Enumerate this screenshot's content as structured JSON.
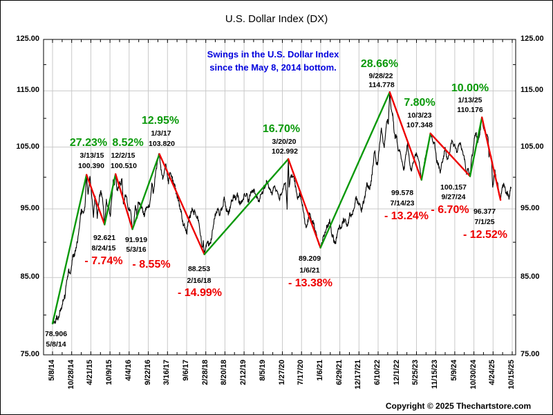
{
  "title": "U.S. Dollar Index (DX)",
  "annotation": {
    "line1": "Swings in the U.S. Dollar Index",
    "line2": "since the May 8, 2014 bottom."
  },
  "copyright": "Copyright © 2025 Thechartstore.com",
  "colors": {
    "up": "#0a990a",
    "down": "#ee0000",
    "annotation": "#0000dd",
    "price": "#000000",
    "grid": "#c9c9c9",
    "frame": "#000000"
  },
  "chart_data": {
    "type": "line",
    "title": "U.S. Dollar Index (DX)",
    "y_axis": {
      "scale": "log",
      "range": [
        75,
        125
      ],
      "tick_values": [
        125,
        115,
        105,
        95,
        85,
        75
      ],
      "tick_labels": [
        "125.00",
        "115.00",
        "105.00",
        "95.00",
        "85.00",
        "75.00"
      ],
      "grid_values": [
        115,
        105,
        95,
        85
      ]
    },
    "x_axis": {
      "tick_labels": [
        "5/8/14",
        "10/28/14",
        "4/21/15",
        "10/9/15",
        "4/4/16",
        "9/22/16",
        "3/16/17",
        "9/6/17",
        "2/28/18",
        "8/20/18",
        "2/12/19",
        "8/5/19",
        "1/27/20",
        "7/17/20",
        "1/6/21",
        "6/29/21",
        "12/17/21",
        "6/10/22",
        "12/1/22",
        "5/25/23",
        "11/15/23",
        "5/9/24",
        "10/30/24",
        "4/24/25",
        "10/15/25"
      ],
      "span_days": 4178
    },
    "swing_points": [
      {
        "date": "5/8/14",
        "value": 78.906,
        "day": 0
      },
      {
        "date": "3/13/15",
        "value": 100.39,
        "day": 309,
        "pct": "27.23%",
        "dir": "up"
      },
      {
        "date": "8/24/15",
        "value": 92.621,
        "day": 473,
        "pct": "- 7.74%",
        "dir": "down"
      },
      {
        "date": "12/2/15",
        "value": 100.51,
        "day": 573,
        "pct": "8.52%",
        "dir": "up"
      },
      {
        "date": "5/3/16",
        "value": 91.919,
        "day": 726,
        "pct": "- 8.55%",
        "dir": "down"
      },
      {
        "date": "1/3/17",
        "value": 103.82,
        "day": 971,
        "pct": "12.95%",
        "dir": "up"
      },
      {
        "date": "2/16/18",
        "value": 88.253,
        "day": 1380,
        "pct": "- 14.99%",
        "dir": "down"
      },
      {
        "date": "3/20/20",
        "value": 102.992,
        "day": 2143,
        "pct": "16.70%",
        "dir": "up"
      },
      {
        "date": "1/6/21",
        "value": 89.209,
        "day": 2435,
        "pct": "- 13.38%",
        "dir": "down"
      },
      {
        "date": "9/28/22",
        "value": 114.778,
        "day": 3065,
        "pct": "28.66%",
        "dir": "up"
      },
      {
        "date": "7/14/23",
        "value": 99.578,
        "day": 3354,
        "pct": "- 13.24%",
        "dir": "down"
      },
      {
        "date": "10/3/23",
        "value": 107.348,
        "day": 3435,
        "pct": "7.80%",
        "dir": "up"
      },
      {
        "date": "9/27/24",
        "value": 100.157,
        "day": 3795,
        "pct": "- 6.70%",
        "dir": "down"
      },
      {
        "date": "1/13/25",
        "value": 110.176,
        "day": 3903,
        "pct": "10.00%",
        "dir": "up"
      },
      {
        "date": "7/1/25",
        "value": 96.377,
        "day": 4072,
        "pct": "- 12.52%",
        "dir": "down"
      }
    ],
    "price_path": [
      [
        0,
        78.906
      ],
      [
        25,
        79.3
      ],
      [
        54,
        79.8
      ],
      [
        85,
        81.3
      ],
      [
        116,
        82.8
      ],
      [
        148,
        86.2
      ],
      [
        160,
        85.1
      ],
      [
        183,
        87.7
      ],
      [
        214,
        89.0
      ],
      [
        246,
        92.3
      ],
      [
        260,
        94.9
      ],
      [
        280,
        94.3
      ],
      [
        294,
        95.3
      ],
      [
        309,
        100.39
      ],
      [
        322,
        97.2
      ],
      [
        340,
        99.8
      ],
      [
        360,
        96.5
      ],
      [
        372,
        93.3
      ],
      [
        384,
        97.2
      ],
      [
        406,
        93.9
      ],
      [
        425,
        96.5
      ],
      [
        439,
        97.9
      ],
      [
        455,
        96.3
      ],
      [
        473,
        92.621
      ],
      [
        489,
        96.1
      ],
      [
        510,
        95.1
      ],
      [
        525,
        94.0
      ],
      [
        551,
        99.2
      ],
      [
        560,
        98.7
      ],
      [
        573,
        100.51
      ],
      [
        586,
        97.8
      ],
      [
        605,
        98.8
      ],
      [
        631,
        99.5
      ],
      [
        644,
        95.8
      ],
      [
        660,
        96.9
      ],
      [
        672,
        97.1
      ],
      [
        690,
        94.8
      ],
      [
        710,
        94.6
      ],
      [
        726,
        91.919
      ],
      [
        740,
        93.0
      ],
      [
        753,
        95.6
      ],
      [
        770,
        93.6
      ],
      [
        778,
        96.1
      ],
      [
        800,
        95.5
      ],
      [
        834,
        94.2
      ],
      [
        860,
        95.5
      ],
      [
        880,
        95.3
      ],
      [
        902,
        98.8
      ],
      [
        917,
        97.5
      ],
      [
        940,
        101.0
      ],
      [
        958,
        103.3
      ],
      [
        971,
        103.82
      ],
      [
        985,
        101.3
      ],
      [
        1001,
        99.8
      ],
      [
        1029,
        102.1
      ],
      [
        1054,
        99.0
      ],
      [
        1068,
        100.8
      ],
      [
        1099,
        99.2
      ],
      [
        1133,
        97.0
      ],
      [
        1152,
        95.7
      ],
      [
        1180,
        93.3
      ],
      [
        1219,
        91.4
      ],
      [
        1240,
        93.5
      ],
      [
        1268,
        94.9
      ],
      [
        1279,
        94.6
      ],
      [
        1314,
        93.9
      ],
      [
        1340,
        92.0
      ],
      [
        1358,
        89.0
      ],
      [
        1370,
        90.2
      ],
      [
        1380,
        88.253
      ],
      [
        1400,
        89.9
      ],
      [
        1420,
        89.6
      ],
      [
        1440,
        90.0
      ],
      [
        1460,
        92.4
      ],
      [
        1482,
        94.2
      ],
      [
        1498,
        94.9
      ],
      [
        1520,
        94.4
      ],
      [
        1545,
        95.4
      ],
      [
        1560,
        96.6
      ],
      [
        1580,
        95.0
      ],
      [
        1597,
        94.2
      ],
      [
        1620,
        95.7
      ],
      [
        1645,
        97.0
      ],
      [
        1665,
        96.8
      ],
      [
        1681,
        97.1
      ],
      [
        1700,
        96.0
      ],
      [
        1708,
        95.6
      ],
      [
        1730,
        96.5
      ],
      [
        1764,
        97.5
      ],
      [
        1777,
        96.0
      ],
      [
        1795,
        97.3
      ],
      [
        1814,
        98.0
      ],
      [
        1840,
        97.6
      ],
      [
        1874,
        96.2
      ],
      [
        1900,
        97.5
      ],
      [
        1925,
        98.3
      ],
      [
        1944,
        99.2
      ],
      [
        1970,
        98.5
      ],
      [
        1989,
        97.4
      ],
      [
        2020,
        98.3
      ],
      [
        2045,
        97.5
      ],
      [
        2063,
        96.6
      ],
      [
        2090,
        97.9
      ],
      [
        2114,
        99.5
      ],
      [
        2125,
        97.4
      ],
      [
        2132,
        95.0
      ],
      [
        2143,
        102.992
      ],
      [
        2150,
        98.5
      ],
      [
        2165,
        100.0
      ],
      [
        2178,
        100.2
      ],
      [
        2200,
        99.6
      ],
      [
        2225,
        96.4
      ],
      [
        2245,
        97.3
      ],
      [
        2270,
        95.9
      ],
      [
        2290,
        93.4
      ],
      [
        2308,
        92.0
      ],
      [
        2332,
        94.3
      ],
      [
        2350,
        93.3
      ],
      [
        2377,
        92.6
      ],
      [
        2400,
        91.0
      ],
      [
        2420,
        90.0
      ],
      [
        2435,
        89.209
      ],
      [
        2455,
        90.3
      ],
      [
        2480,
        91.8
      ],
      [
        2500,
        92.4
      ],
      [
        2519,
        93.2
      ],
      [
        2540,
        91.1
      ],
      [
        2560,
        90.1
      ],
      [
        2574,
        89.8
      ],
      [
        2598,
        92.1
      ],
      [
        2620,
        92.3
      ],
      [
        2640,
        93.0
      ],
      [
        2661,
        93.4
      ],
      [
        2675,
        92.3
      ],
      [
        2700,
        93.9
      ],
      [
        2730,
        94.2
      ],
      [
        2757,
        96.7
      ],
      [
        2780,
        95.9
      ],
      [
        2808,
        94.8
      ],
      [
        2830,
        96.2
      ],
      [
        2860,
        99.1
      ],
      [
        2883,
        98.0
      ],
      [
        2905,
        100.5
      ],
      [
        2927,
        104.6
      ],
      [
        2944,
        101.9
      ],
      [
        2960,
        102.8
      ],
      [
        2989,
        108.4
      ],
      [
        3003,
        105.8
      ],
      [
        3016,
        105.1
      ],
      [
        3030,
        108.2
      ],
      [
        3045,
        110.0
      ],
      [
        3052,
        108.9
      ],
      [
        3065,
        114.778
      ],
      [
        3080,
        111.3
      ],
      [
        3093,
        110.2
      ],
      [
        3113,
        106.5
      ],
      [
        3128,
        106.8
      ],
      [
        3142,
        104.1
      ],
      [
        3160,
        104.5
      ],
      [
        3177,
        102.2
      ],
      [
        3192,
        101.0
      ],
      [
        3210,
        103.5
      ],
      [
        3226,
        105.7
      ],
      [
        3245,
        102.4
      ],
      [
        3263,
        101.2
      ],
      [
        3285,
        102.8
      ],
      [
        3310,
        104.1
      ],
      [
        3330,
        102.5
      ],
      [
        3354,
        99.578
      ],
      [
        3375,
        101.9
      ],
      [
        3396,
        104.0
      ],
      [
        3420,
        105.8
      ],
      [
        3435,
        107.348
      ],
      [
        3450,
        106.2
      ],
      [
        3470,
        105.7
      ],
      [
        3491,
        103.0
      ],
      [
        3521,
        100.9
      ],
      [
        3540,
        102.3
      ],
      [
        3568,
        104.7
      ],
      [
        3592,
        102.9
      ],
      [
        3610,
        104.5
      ],
      [
        3631,
        106.2
      ],
      [
        3655,
        105.1
      ],
      [
        3680,
        104.3
      ],
      [
        3702,
        105.9
      ],
      [
        3725,
        104.2
      ],
      [
        3745,
        102.9
      ],
      [
        3760,
        100.9
      ],
      [
        3775,
        101.2
      ],
      [
        3795,
        100.157
      ],
      [
        3810,
        103.3
      ],
      [
        3821,
        104.3
      ],
      [
        3836,
        106.6
      ],
      [
        3851,
        107.5
      ],
      [
        3865,
        105.8
      ],
      [
        3880,
        106.9
      ],
      [
        3903,
        110.176
      ],
      [
        3920,
        108.0
      ],
      [
        3949,
        107.3
      ],
      [
        3958,
        106.3
      ],
      [
        3967,
        103.4
      ],
      [
        3975,
        104.2
      ],
      [
        3990,
        102.7
      ],
      [
        4001,
        98.4
      ],
      [
        4012,
        100.0
      ],
      [
        4022,
        101.1
      ],
      [
        4035,
        99.3
      ],
      [
        4043,
        99.0
      ],
      [
        4060,
        97.2
      ],
      [
        4072,
        96.377
      ],
      [
        4080,
        97.5
      ],
      [
        4088,
        98.6
      ],
      [
        4103,
        98.9
      ],
      [
        4115,
        98.0
      ],
      [
        4124,
        97.8
      ],
      [
        4138,
        97.1
      ],
      [
        4149,
        96.8
      ],
      [
        4160,
        97.9
      ],
      [
        4168,
        98.2
      ]
    ]
  }
}
